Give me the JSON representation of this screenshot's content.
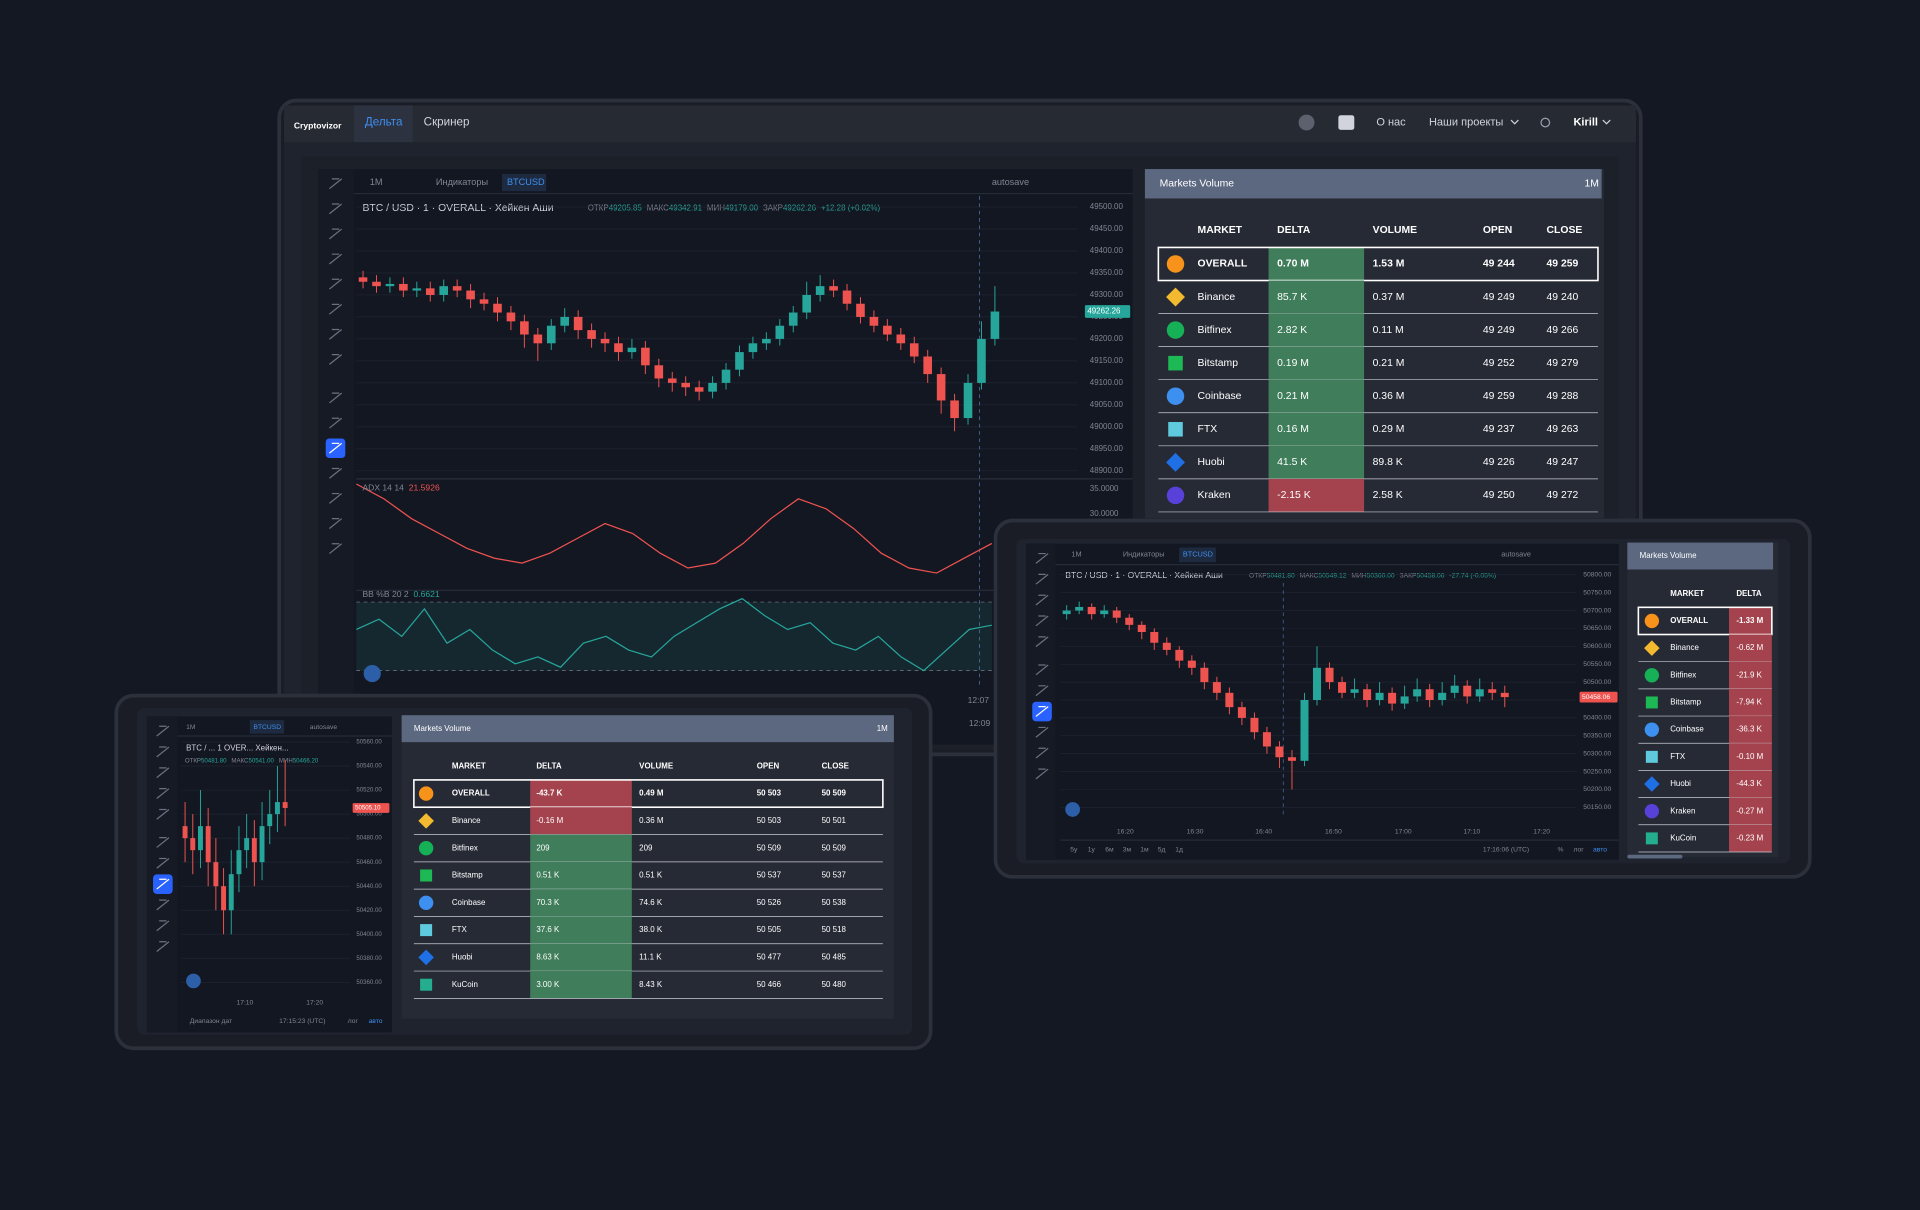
{
  "laptop": {
    "logo": "Cryptovizor",
    "nav": [
      "Дельта",
      "Скринер"
    ],
    "links": [
      "О нас",
      "Наши проекты",
      "Kirill"
    ],
    "toolbar": [
      "1M",
      "Индикаторы",
      "BTCUSD",
      "autosave"
    ],
    "legend": {
      "title": "BTC / USD · 1 · OVERALL · Хейкен Аши",
      "ohlc": [
        [
          "ОТКР",
          "49205.85"
        ],
        [
          "МАКС",
          "49342.91"
        ],
        [
          "МИН",
          "49179.00"
        ],
        [
          "ЗАКР",
          "49262.26"
        ]
      ],
      "change": "+12.28 (+0.02%)"
    },
    "chart": {
      "type": "candlestick",
      "ylim": [
        48890,
        49525
      ],
      "yticks": [
        {
          "value": 49500,
          "label": "49500.00"
        },
        {
          "value": 49450,
          "label": "49450.00"
        },
        {
          "value": 49400,
          "label": "49400.00"
        },
        {
          "value": 49350,
          "label": "49350.00"
        },
        {
          "value": 49300,
          "label": "49300.00"
        },
        {
          "value": 49250,
          "label": "49250.00"
        },
        {
          "value": 49200,
          "label": "49200.00"
        },
        {
          "value": 49150,
          "label": "49150.00"
        },
        {
          "value": 49100,
          "label": "49100.00"
        },
        {
          "value": 49050,
          "label": "49050.00"
        },
        {
          "value": 49000,
          "label": "49000.00"
        },
        {
          "value": 48950,
          "label": "48950.00"
        },
        {
          "value": 48900,
          "label": "48900.00"
        }
      ],
      "price_label": "49262.26",
      "xlabels": [
        "12:07",
        "12:09"
      ],
      "candles": [
        [
          49340,
          49355,
          49315,
          49330
        ],
        [
          49330,
          49345,
          49305,
          49320
        ],
        [
          49320,
          49340,
          49305,
          49325
        ],
        [
          49325,
          49340,
          49295,
          49310
        ],
        [
          49310,
          49330,
          49295,
          49315
        ],
        [
          49315,
          49330,
          49285,
          49300
        ],
        [
          49300,
          49335,
          49285,
          49320
        ],
        [
          49320,
          49335,
          49295,
          49310
        ],
        [
          49310,
          49325,
          49270,
          49290
        ],
        [
          49290,
          49305,
          49265,
          49280
        ],
        [
          49280,
          49295,
          49240,
          49260
        ],
        [
          49260,
          49275,
          49220,
          49240
        ],
        [
          49240,
          49255,
          49180,
          49210
        ],
        [
          49210,
          49225,
          49150,
          49190
        ],
        [
          49190,
          49245,
          49175,
          49230
        ],
        [
          49230,
          49270,
          49215,
          49250
        ],
        [
          49250,
          49265,
          49200,
          49220
        ],
        [
          49220,
          49235,
          49180,
          49200
        ],
        [
          49200,
          49215,
          49170,
          49190
        ],
        [
          49190,
          49205,
          49150,
          49170
        ],
        [
          49170,
          49200,
          49155,
          49180
        ],
        [
          49180,
          49195,
          49120,
          49140
        ],
        [
          49140,
          49155,
          49090,
          49110
        ],
        [
          49110,
          49125,
          49080,
          49100
        ],
        [
          49100,
          49115,
          49070,
          49090
        ],
        [
          49090,
          49105,
          49060,
          49080
        ],
        [
          49080,
          49115,
          49065,
          49100
        ],
        [
          49100,
          49145,
          49085,
          49130
        ],
        [
          49130,
          49185,
          49115,
          49170
        ],
        [
          49170,
          49205,
          49155,
          49190
        ],
        [
          49190,
          49215,
          49175,
          49200
        ],
        [
          49200,
          49245,
          49185,
          49230
        ],
        [
          49230,
          49275,
          49215,
          49260
        ],
        [
          49260,
          49330,
          49245,
          49300
        ],
        [
          49300,
          49345,
          49285,
          49320
        ],
        [
          49320,
          49335,
          49295,
          49310
        ],
        [
          49310,
          49325,
          49265,
          49280
        ],
        [
          49280,
          49295,
          49235,
          49250
        ],
        [
          49250,
          49265,
          49215,
          49230
        ],
        [
          49230,
          49245,
          49195,
          49210
        ],
        [
          49210,
          49225,
          49175,
          49190
        ],
        [
          49190,
          49205,
          49145,
          49160
        ],
        [
          49160,
          49175,
          49100,
          49120
        ],
        [
          49120,
          49135,
          49030,
          49060
        ],
        [
          49060,
          49075,
          48990,
          49020
        ],
        [
          49020,
          49120,
          49005,
          49100
        ],
        [
          49100,
          49240,
          49085,
          49200
        ],
        [
          49200,
          49320,
          49185,
          49262.26
        ]
      ]
    },
    "adx": {
      "type": "line",
      "label": "ADX 14 14",
      "value": "21.5926",
      "color": "#ef5350",
      "ylim": [
        14.5,
        36.8
      ],
      "yticks": [
        {
          "value": 35,
          "label": "35.0000"
        },
        {
          "value": 30,
          "label": "30.0000"
        }
      ],
      "values": [
        36,
        33,
        29,
        26,
        23,
        21,
        20,
        22,
        25,
        28,
        26,
        22,
        19,
        20,
        24,
        29,
        33,
        31,
        27,
        22,
        19,
        18,
        21,
        24
      ]
    },
    "bb": {
      "type": "line",
      "label": "BB %B 20 2",
      "value": "0.6621",
      "color": "#26a69a",
      "ylim": [
        -0.15,
        1.1
      ],
      "levels": [
        1,
        0
      ],
      "values": [
        0.6,
        0.75,
        0.5,
        0.9,
        0.4,
        0.6,
        0.3,
        0.1,
        0.2,
        0.05,
        0.4,
        0.5,
        0.3,
        0.2,
        0.5,
        0.7,
        0.9,
        1.05,
        0.8,
        0.6,
        0.7,
        0.4,
        0.3,
        0.5,
        0.2,
        0,
        0.3,
        0.6,
        0.6621
      ]
    },
    "table": {
      "title": "Markets Volume",
      "period": "1M",
      "columns": [
        "MARKET",
        "DELTA",
        "VOLUME",
        "OPEN",
        "CLOSE"
      ],
      "rows": [
        [
          "OVERALL",
          "0.70 M",
          "1.53 M",
          "49 244",
          "49 259"
        ],
        [
          "Binance",
          "85.7 K",
          "0.37 M",
          "49 249",
          "49 240"
        ],
        [
          "Bitfinex",
          "2.82 K",
          "0.11 M",
          "49 249",
          "49 266"
        ],
        [
          "Bitstamp",
          "0.19 M",
          "0.21 M",
          "49 252",
          "49 279"
        ],
        [
          "Coinbase",
          "0.21 M",
          "0.36 M",
          "49 259",
          "49 288"
        ],
        [
          "FTX",
          "0.16 M",
          "0.29 M",
          "49 237",
          "49 263"
        ],
        [
          "Huobi",
          "41.5 K",
          "89.8 K",
          "49 226",
          "49 247"
        ],
        [
          "Kraken",
          "-2.15 K",
          "2.58 K",
          "49 250",
          "49 272"
        ]
      ]
    }
  },
  "tablet": {
    "toolbar": [
      "1M",
      "Индикаторы",
      "BTCUSD",
      "autosave"
    ],
    "legend": {
      "title": "BTC / USD · 1 · OVERALL · Хейкен Аши",
      "ohlc": [
        [
          "ОТКР",
          "50481.80"
        ],
        [
          "МАКС",
          "50549.12"
        ],
        [
          "МИН",
          "50360.00"
        ],
        [
          "ЗАКР",
          "50458.06"
        ]
      ],
      "change": "-27.74 (-0.05%)"
    },
    "chart": {
      "type": "candlestick",
      "ylim": [
        50120,
        50825
      ],
      "yticks": [
        {
          "value": 50800,
          "label": "50800.00"
        },
        {
          "value": 50750,
          "label": "50750.00"
        },
        {
          "value": 50700,
          "label": "50700.00"
        },
        {
          "value": 50650,
          "label": "50650.00"
        },
        {
          "value": 50600,
          "label": "50600.00"
        },
        {
          "value": 50550,
          "label": "50550.00"
        },
        {
          "value": 50500,
          "label": "50500.00"
        },
        {
          "value": 50450,
          "label": "50450.00"
        },
        {
          "value": 50400,
          "label": "50400.00"
        },
        {
          "value": 50350,
          "label": "50350.00"
        },
        {
          "value": 50300,
          "label": "50300.00"
        },
        {
          "value": 50250,
          "label": "50250.00"
        },
        {
          "value": 50200,
          "label": "50200.00"
        },
        {
          "value": 50150,
          "label": "50150.00"
        }
      ],
      "price_label": "50458.06",
      "xlabels": [
        "16:20",
        "16:30",
        "16:40",
        "16:50",
        "17:00",
        "17:10",
        "17:20"
      ],
      "candles": [
        [
          50690,
          50715,
          50675,
          50700
        ],
        [
          50700,
          50725,
          50690,
          50710
        ],
        [
          50710,
          50720,
          50675,
          50690
        ],
        [
          50690,
          50715,
          50680,
          50700
        ],
        [
          50700,
          50710,
          50665,
          50680
        ],
        [
          50680,
          50690,
          50645,
          50660
        ],
        [
          50660,
          50670,
          50620,
          50640
        ],
        [
          50640,
          50650,
          50590,
          50610
        ],
        [
          50610,
          50625,
          50575,
          50590
        ],
        [
          50590,
          50600,
          50540,
          50560
        ],
        [
          50560,
          50575,
          50520,
          50540
        ],
        [
          50540,
          50555,
          50480,
          50500
        ],
        [
          50500,
          50515,
          50450,
          50470
        ],
        [
          50470,
          50485,
          50410,
          50430
        ],
        [
          50430,
          50445,
          50380,
          50400
        ],
        [
          50400,
          50415,
          50340,
          50360
        ],
        [
          50360,
          50375,
          50300,
          50320
        ],
        [
          50320,
          50335,
          50260,
          50290
        ],
        [
          50290,
          50310,
          50200,
          50280
        ],
        [
          50280,
          50470,
          50265,
          50450
        ],
        [
          50450,
          50600,
          50435,
          50540
        ],
        [
          50540,
          50555,
          50480,
          50500
        ],
        [
          50500,
          50515,
          50455,
          50470
        ],
        [
          50470,
          50510,
          50455,
          50480
        ],
        [
          50480,
          50495,
          50430,
          50450
        ],
        [
          50450,
          50500,
          50435,
          50470
        ],
        [
          50470,
          50485,
          50420,
          50440
        ],
        [
          50440,
          50490,
          50425,
          50460
        ],
        [
          50460,
          50510,
          50445,
          50480
        ],
        [
          50480,
          50495,
          50430,
          50450
        ],
        [
          50450,
          50500,
          50435,
          50470
        ],
        [
          50470,
          50520,
          50455,
          50490
        ],
        [
          50490,
          50505,
          50440,
          50460
        ],
        [
          50460,
          50510,
          50445,
          50480
        ],
        [
          50480,
          50500,
          50450,
          50470
        ],
        [
          50470,
          50490,
          50430,
          50458.06
        ]
      ]
    },
    "ranges": [
      "5y",
      "1y",
      "6м",
      "3м",
      "1м",
      "5д",
      "1д"
    ],
    "time": "17:16:06 (UTC)",
    "modes": [
      "%",
      "лог",
      "авто"
    ],
    "table": {
      "title": "Markets Volume",
      "columns": [
        "MARKET",
        "DELTA"
      ],
      "rows": [
        [
          "OVERALL",
          "-1.33 M"
        ],
        [
          "Binance",
          "-0.62 M"
        ],
        [
          "Bitfinex",
          "-21.9 K"
        ],
        [
          "Bitstamp",
          "-7.94 K"
        ],
        [
          "Coinbase",
          "-36.3 K"
        ],
        [
          "FTX",
          "-0.10 M"
        ],
        [
          "Huobi",
          "-44.3 K"
        ],
        [
          "Kraken",
          "-0.27 M"
        ],
        [
          "KuCoin",
          "-0.23 M"
        ]
      ]
    }
  },
  "phone": {
    "toolbar": [
      "1M",
      "BTCUSD",
      "autosave"
    ],
    "legend": {
      "title": "BTC / ...   1   OVER...   Хейкен...",
      "ohlc": [
        [
          "ОТКР",
          "50481.80"
        ],
        [
          "МАКС",
          "50541.00"
        ],
        [
          "МИН",
          "50466.20"
        ]
      ]
    },
    "chart": {
      "type": "candlestick",
      "ylim": [
        50352,
        50566
      ],
      "yticks": [
        {
          "value": 50560,
          "label": "50560.00"
        },
        {
          "value": 50540,
          "label": "50540.00"
        },
        {
          "value": 50520,
          "label": "50520.00"
        },
        {
          "value": 50500,
          "label": "50500.00"
        },
        {
          "value": 50480,
          "label": "50480.00"
        },
        {
          "value": 50460,
          "label": "50460.00"
        },
        {
          "value": 50440,
          "label": "50440.00"
        },
        {
          "value": 50420,
          "label": "50420.00"
        },
        {
          "value": 50400,
          "label": "50400.00"
        },
        {
          "value": 50380,
          "label": "50380.00"
        },
        {
          "value": 50360,
          "label": "50360.00"
        }
      ],
      "price_label": "50505.10",
      "xlabels": [
        "17:10",
        "17:20"
      ],
      "candles": [
        [
          50490,
          50510,
          50460,
          50480
        ],
        [
          50480,
          50500,
          50450,
          50470
        ],
        [
          50470,
          50520,
          50455,
          50490
        ],
        [
          50490,
          50505,
          50440,
          50460
        ],
        [
          50460,
          50480,
          50420,
          50440
        ],
        [
          50440,
          50455,
          50400,
          50420
        ],
        [
          50420,
          50470,
          50400,
          50450
        ],
        [
          50450,
          50490,
          50435,
          50470
        ],
        [
          50470,
          50500,
          50455,
          50480
        ],
        [
          50480,
          50495,
          50440,
          50460
        ],
        [
          50460,
          50510,
          50445,
          50490
        ],
        [
          50490,
          50520,
          50475,
          50500
        ],
        [
          50500,
          50540,
          50485,
          50510
        ],
        [
          50510,
          50545,
          50490,
          50505.1
        ]
      ]
    },
    "range": "Диапазон дат",
    "time": "17:15:23 (UTC)",
    "modes": [
      "лог",
      "авто"
    ],
    "table": {
      "title": "Markets Volume",
      "period": "1M",
      "columns": [
        "MARKET",
        "DELTA",
        "VOLUME",
        "OPEN",
        "CLOSE"
      ],
      "rows": [
        [
          "OVERALL",
          "-43.7 K",
          "0.49 M",
          "50 503",
          "50 509"
        ],
        [
          "Binance",
          "-0.16 M",
          "0.36 M",
          "50 503",
          "50 501"
        ],
        [
          "Bitfinex",
          "209",
          "209",
          "50 509",
          "50 509"
        ],
        [
          "Bitstamp",
          "0.51 K",
          "0.51 K",
          "50 537",
          "50 537"
        ],
        [
          "Coinbase",
          "70.3 K",
          "74.6 K",
          "50 526",
          "50 538"
        ],
        [
          "FTX",
          "37.6 K",
          "38.0 K",
          "50 505",
          "50 518"
        ],
        [
          "Huobi",
          "8.63 K",
          "11.1 K",
          "50 477",
          "50 485"
        ],
        [
          "KuCoin",
          "3.00 K",
          "8.43 K",
          "50 466",
          "50 480"
        ]
      ]
    }
  }
}
